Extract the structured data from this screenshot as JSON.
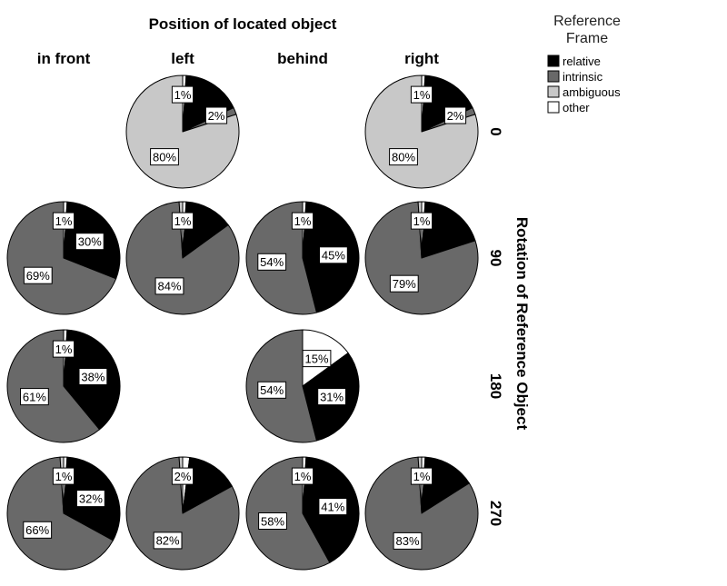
{
  "chart_data": {
    "type": "pie",
    "title": "Position of located object",
    "column_header_title": "Position of located object",
    "row_header_title": "Rotation of Reference Object",
    "columns": [
      "in front",
      "left",
      "behind",
      "right"
    ],
    "rows": [
      "0",
      "90",
      "180",
      "270"
    ],
    "legend": {
      "title_lines": [
        "Reference",
        "Frame"
      ],
      "placement": "top-right",
      "entries": [
        {
          "name": "relative",
          "color": "#000000"
        },
        {
          "name": "intrinsic",
          "color": "#696969"
        },
        {
          "name": "ambiguous",
          "color": "#c8c8c8"
        },
        {
          "name": "other",
          "color": "#ffffff"
        }
      ]
    },
    "pies": [
      {
        "row": "0",
        "column": "left",
        "values": {
          "relative": 17,
          "intrinsic": 2,
          "ambiguous": 80,
          "other": 1
        },
        "labels": {
          "relative": "",
          "intrinsic": "2%",
          "ambiguous": "80%",
          "other": "1%"
        }
      },
      {
        "row": "0",
        "column": "right",
        "values": {
          "relative": 17,
          "intrinsic": 2,
          "ambiguous": 80,
          "other": 1
        },
        "labels": {
          "relative": "",
          "intrinsic": "2%",
          "ambiguous": "80%",
          "other": "1%"
        }
      },
      {
        "row": "90",
        "column": "in front",
        "values": {
          "relative": 30,
          "intrinsic": 69,
          "ambiguous": 0,
          "other": 1
        },
        "labels": {
          "relative": "30%",
          "intrinsic": "69%",
          "ambiguous": "",
          "other": "1%"
        }
      },
      {
        "row": "90",
        "column": "left",
        "values": {
          "relative": 14,
          "intrinsic": 84,
          "ambiguous": 1,
          "other": 1
        },
        "labels": {
          "relative": "",
          "intrinsic": "84%",
          "ambiguous": "",
          "other": "1%"
        }
      },
      {
        "row": "90",
        "column": "behind",
        "values": {
          "relative": 45,
          "intrinsic": 54,
          "ambiguous": 0,
          "other": 1
        },
        "labels": {
          "relative": "45%",
          "intrinsic": "54%",
          "ambiguous": "",
          "other": "1%"
        }
      },
      {
        "row": "90",
        "column": "right",
        "values": {
          "relative": 19,
          "intrinsic": 79,
          "ambiguous": 1,
          "other": 1
        },
        "labels": {
          "relative": "",
          "intrinsic": "79%",
          "ambiguous": "",
          "other": "1%"
        }
      },
      {
        "row": "180",
        "column": "in front",
        "values": {
          "relative": 38,
          "intrinsic": 61,
          "ambiguous": 0,
          "other": 1
        },
        "labels": {
          "relative": "38%",
          "intrinsic": "61%",
          "ambiguous": "",
          "other": "1%"
        }
      },
      {
        "row": "180",
        "column": "behind",
        "values": {
          "relative": 31,
          "intrinsic": 54,
          "ambiguous": 0,
          "other": 15
        },
        "labels": {
          "relative": "31%",
          "intrinsic": "54%",
          "ambiguous": "",
          "other": "15%"
        }
      },
      {
        "row": "270",
        "column": "in front",
        "values": {
          "relative": 32,
          "intrinsic": 66,
          "ambiguous": 1,
          "other": 1
        },
        "labels": {
          "relative": "32%",
          "intrinsic": "66%",
          "ambiguous": "",
          "other": "1%"
        }
      },
      {
        "row": "270",
        "column": "left",
        "values": {
          "relative": 15,
          "intrinsic": 82,
          "ambiguous": 1,
          "other": 2
        },
        "labels": {
          "relative": "",
          "intrinsic": "82%",
          "ambiguous": "",
          "other": "2%"
        }
      },
      {
        "row": "270",
        "column": "behind",
        "values": {
          "relative": 41,
          "intrinsic": 58,
          "ambiguous": 0,
          "other": 1
        },
        "labels": {
          "relative": "41%",
          "intrinsic": "58%",
          "ambiguous": "",
          "other": "1%"
        }
      },
      {
        "row": "270",
        "column": "right",
        "values": {
          "relative": 15,
          "intrinsic": 83,
          "ambiguous": 1,
          "other": 1
        },
        "labels": {
          "relative": "",
          "intrinsic": "83%",
          "ambiguous": "",
          "other": "1%"
        }
      }
    ]
  }
}
